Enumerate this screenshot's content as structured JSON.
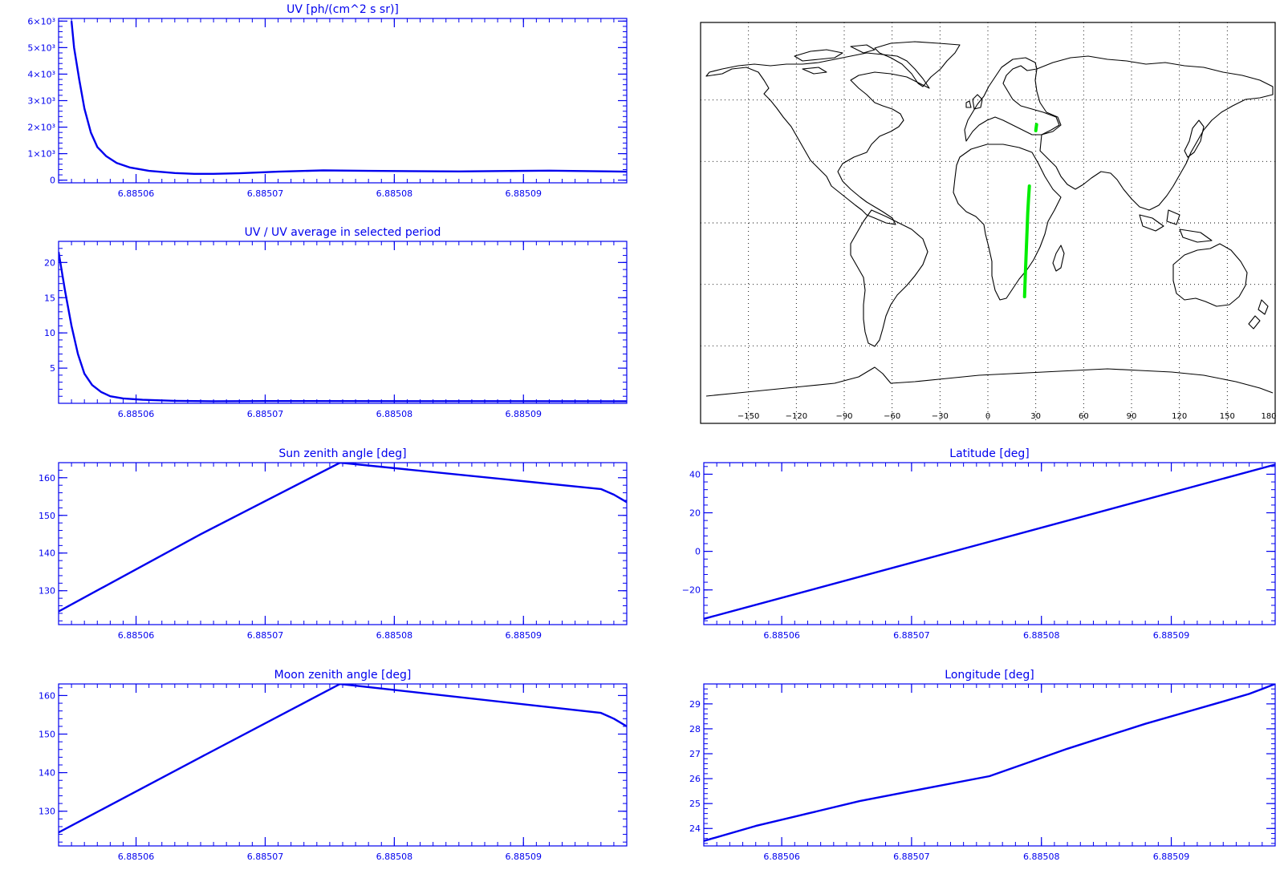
{
  "chart_data": [
    {
      "id": "uv",
      "type": "line",
      "title": "UV [ph/(cm^2 s sr)]",
      "xlim": [
        6.885054,
        6.885098
      ],
      "ylim": [
        -100,
        6100
      ],
      "x_ticks": [
        6.88506,
        6.88507,
        6.88508,
        6.88509
      ],
      "x_tick_labels": [
        "6.88506",
        "6.88507",
        "6.88508",
        "6.88509"
      ],
      "y_ticks": [
        0,
        1000,
        2000,
        3000,
        4000,
        5000,
        6000
      ],
      "y_tick_labels": [
        "0",
        "1×10³",
        "2×10³",
        "3×10³",
        "4×10³",
        "5×10³",
        "6×10³"
      ],
      "x": [
        6.885055,
        6.8850552,
        6.8850556,
        6.885056,
        6.8850565,
        6.885057,
        6.8850577,
        6.8850585,
        6.8850595,
        6.885061,
        6.885063,
        6.8850645,
        6.885066,
        6.885068,
        6.885071,
        6.8850745,
        6.885078,
        6.885085,
        6.885092,
        6.885098
      ],
      "y": [
        6000,
        5000,
        3800,
        2700,
        1800,
        1250,
        900,
        650,
        480,
        350,
        270,
        240,
        240,
        260,
        320,
        370,
        350,
        330,
        360,
        320
      ]
    },
    {
      "id": "uv-ratio",
      "type": "line",
      "title": "UV / UV average in selected period",
      "xlim": [
        6.885054,
        6.885098
      ],
      "ylim": [
        0,
        23
      ],
      "x_ticks": [
        6.88506,
        6.88507,
        6.88508,
        6.88509
      ],
      "x_tick_labels": [
        "6.88506",
        "6.88507",
        "6.88508",
        "6.88509"
      ],
      "y_ticks": [
        5,
        10,
        15,
        20
      ],
      "y_tick_labels": [
        "5",
        "10",
        "15",
        "20"
      ],
      "x": [
        6.885054,
        6.8850545,
        6.885055,
        6.8850555,
        6.885056,
        6.8850566,
        6.8850573,
        6.885058,
        6.885059,
        6.8850605,
        6.885063,
        6.885066,
        6.88507,
        6.885098
      ],
      "y": [
        21.5,
        16,
        11,
        7,
        4.2,
        2.6,
        1.6,
        1.0,
        0.7,
        0.5,
        0.35,
        0.3,
        0.32,
        0.3
      ]
    },
    {
      "id": "sun-zenith",
      "type": "line",
      "title": "Sun zenith angle [deg]",
      "xlim": [
        6.885054,
        6.885098
      ],
      "ylim": [
        121,
        164
      ],
      "x_ticks": [
        6.88506,
        6.88507,
        6.88508,
        6.88509
      ],
      "x_tick_labels": [
        "6.88506",
        "6.88507",
        "6.88508",
        "6.88509"
      ],
      "y_ticks": [
        130,
        140,
        150,
        160
      ],
      "y_tick_labels": [
        "130",
        "140",
        "150",
        "160"
      ],
      "x": [
        6.885054,
        6.885065,
        6.8850758,
        6.885096,
        6.885097,
        6.885098
      ],
      "y": [
        124.5,
        145,
        164,
        157,
        155.5,
        153.5
      ]
    },
    {
      "id": "latitude",
      "type": "line",
      "title": "Latitude [deg]",
      "xlim": [
        6.885054,
        6.885098
      ],
      "ylim": [
        -38,
        46
      ],
      "x_ticks": [
        6.88506,
        6.88507,
        6.88508,
        6.88509
      ],
      "x_tick_labels": [
        "6.88506",
        "6.88507",
        "6.88508",
        "6.88509"
      ],
      "y_ticks": [
        -20,
        0,
        20,
        40
      ],
      "y_tick_labels": [
        "−20",
        "0",
        "20",
        "40"
      ],
      "x": [
        6.885054,
        6.885076,
        6.885098
      ],
      "y": [
        -35,
        5,
        45
      ]
    },
    {
      "id": "moon-zenith",
      "type": "line",
      "title": "Moon zenith angle [deg]",
      "xlim": [
        6.885054,
        6.885098
      ],
      "ylim": [
        121,
        163
      ],
      "x_ticks": [
        6.88506,
        6.88507,
        6.88508,
        6.88509
      ],
      "x_tick_labels": [
        "6.88506",
        "6.88507",
        "6.88508",
        "6.88509"
      ],
      "y_ticks": [
        130,
        140,
        150,
        160
      ],
      "y_tick_labels": [
        "130",
        "140",
        "150",
        "160"
      ],
      "x": [
        6.885054,
        6.885065,
        6.8850758,
        6.885096,
        6.885097,
        6.885098
      ],
      "y": [
        124.5,
        144,
        163,
        155.5,
        154,
        152
      ]
    },
    {
      "id": "longitude",
      "type": "line",
      "title": "Longitude [deg]",
      "xlim": [
        6.885054,
        6.885098
      ],
      "ylim": [
        23.3,
        29.8
      ],
      "x_ticks": [
        6.88506,
        6.88507,
        6.88508,
        6.88509
      ],
      "x_tick_labels": [
        "6.88506",
        "6.88507",
        "6.88508",
        "6.88509"
      ],
      "y_ticks": [
        24,
        25,
        26,
        27,
        28,
        29
      ],
      "y_tick_labels": [
        "24",
        "25",
        "26",
        "27",
        "28",
        "29"
      ],
      "x": [
        6.885054,
        6.885058,
        6.885062,
        6.885066,
        6.88507,
        6.885076,
        6.885082,
        6.885088,
        6.885094,
        6.885096,
        6.885097,
        6.885098
      ],
      "y": [
        23.5,
        24.1,
        24.6,
        25.1,
        25.5,
        26.1,
        27.2,
        28.2,
        29.1,
        29.4,
        29.6,
        29.8
      ]
    }
  ],
  "map": {
    "lon_ticks": [
      -150,
      -120,
      -90,
      -60,
      -30,
      0,
      30,
      60,
      90,
      120,
      150,
      180
    ],
    "lon_tick_labels": [
      "−150",
      "−120",
      "−90",
      "−60",
      "−30",
      "0",
      "30",
      "60",
      "90",
      "120",
      "150",
      "180"
    ],
    "lat_grid": [
      -60,
      -30,
      0,
      30,
      60
    ],
    "track": [
      {
        "lon": [
          23,
          23.5,
          24,
          24.5,
          25,
          25.5,
          26
        ],
        "lat": [
          -36,
          -25,
          -15,
          -5,
          5,
          12,
          18
        ]
      },
      {
        "lon": [
          30,
          30.5
        ],
        "lat": [
          45,
          48
        ]
      }
    ],
    "colors": {
      "track": "#00ee00",
      "coast": "#000000"
    }
  }
}
